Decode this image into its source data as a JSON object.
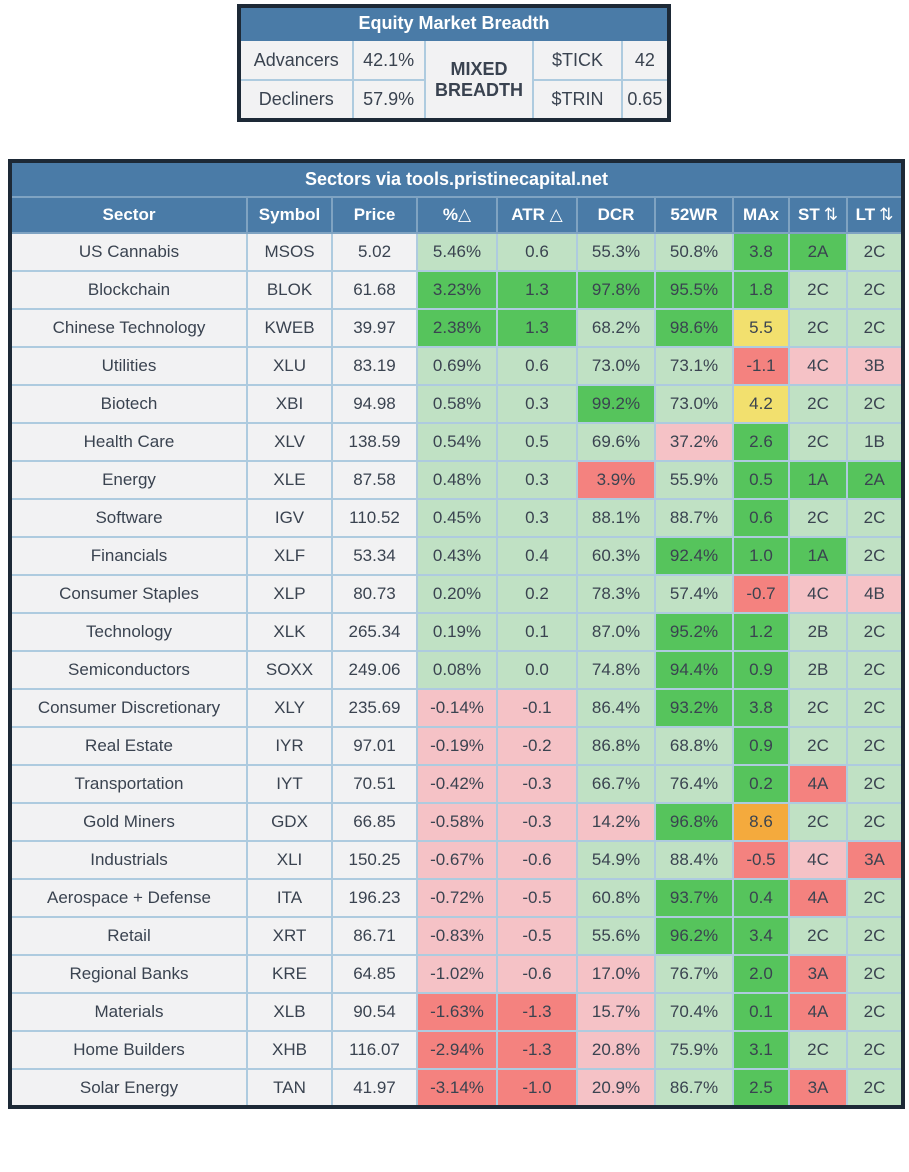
{
  "palette": {
    "dark-border": "#1d2936",
    "header-blue": "#4a7ba7",
    "grid-blue": "#aecbdf",
    "header-grid": "#7fa3c2",
    "cell-bg": "#f2f2f3",
    "text-dark": "#3a4350",
    "text-white": "#ffffff",
    "green": "#56c45c",
    "green-light": "#c0e1c4",
    "pink-light": "#f5c2c6",
    "red": "#f4827f",
    "yellow-cell": "#f2e06e",
    "yellow-breadth": "#f0d950",
    "orange": "#f4aa3d"
  },
  "icons": {
    "sort": "⇅"
  },
  "breadth": {
    "title": "Equity Market Breadth",
    "advancers_label": "Advancers",
    "advancers_value": "42.1%",
    "decliners_label": "Decliners",
    "decliners_value": "57.9%",
    "status": "MIXED BREADTH",
    "tick_label": "$TICK",
    "tick_value": "42",
    "trin_label": "$TRIN",
    "trin_value": "0.65"
  },
  "sectors": {
    "title": "Sectors via tools.pristinecapital.net",
    "columns": [
      {
        "key": "sector",
        "label": "Sector",
        "sort": false
      },
      {
        "key": "symbol",
        "label": "Symbol",
        "sort": false
      },
      {
        "key": "price",
        "label": "Price",
        "sort": false
      },
      {
        "key": "pct-change",
        "label": "%△",
        "sort": false
      },
      {
        "key": "atr-change",
        "label": "ATR △",
        "sort": false
      },
      {
        "key": "dcr",
        "label": "DCR",
        "sort": false
      },
      {
        "key": "52wr",
        "label": "52WR",
        "sort": false
      },
      {
        "key": "max",
        "label": "MAx",
        "sort": false
      },
      {
        "key": "st-rating",
        "label": "ST",
        "sort": true
      },
      {
        "key": "lt-rating",
        "label": "LT",
        "sort": true
      }
    ],
    "rows": [
      [
        "US Cannabis",
        "MSOS",
        "5.02",
        [
          "5.46%",
          "lg"
        ],
        [
          "0.6",
          "lg"
        ],
        [
          "55.3%",
          "lg"
        ],
        [
          "50.8%",
          "lg"
        ],
        [
          "3.8",
          "g"
        ],
        [
          "2A",
          "g"
        ],
        [
          "2C",
          "lg"
        ]
      ],
      [
        "Blockchain",
        "BLOK",
        "61.68",
        [
          "3.23%",
          "g"
        ],
        [
          "1.3",
          "g"
        ],
        [
          "97.8%",
          "g"
        ],
        [
          "95.5%",
          "g"
        ],
        [
          "1.8",
          "g"
        ],
        [
          "2C",
          "lg"
        ],
        [
          "2C",
          "lg"
        ]
      ],
      [
        "Chinese Technology",
        "KWEB",
        "39.97",
        [
          "2.38%",
          "g"
        ],
        [
          "1.3",
          "g"
        ],
        [
          "68.2%",
          "lg"
        ],
        [
          "98.6%",
          "g"
        ],
        [
          "5.5",
          "y"
        ],
        [
          "2C",
          "lg"
        ],
        [
          "2C",
          "lg"
        ]
      ],
      [
        "Utilities",
        "XLU",
        "83.19",
        [
          "0.69%",
          "lg"
        ],
        [
          "0.6",
          "lg"
        ],
        [
          "73.0%",
          "lg"
        ],
        [
          "73.1%",
          "lg"
        ],
        [
          "-1.1",
          "r"
        ],
        [
          "4C",
          "p"
        ],
        [
          "3B",
          "p"
        ]
      ],
      [
        "Biotech",
        "XBI",
        "94.98",
        [
          "0.58%",
          "lg"
        ],
        [
          "0.3",
          "lg"
        ],
        [
          "99.2%",
          "g"
        ],
        [
          "73.0%",
          "lg"
        ],
        [
          "4.2",
          "y"
        ],
        [
          "2C",
          "lg"
        ],
        [
          "2C",
          "lg"
        ]
      ],
      [
        "Health Care",
        "XLV",
        "138.59",
        [
          "0.54%",
          "lg"
        ],
        [
          "0.5",
          "lg"
        ],
        [
          "69.6%",
          "lg"
        ],
        [
          "37.2%",
          "p"
        ],
        [
          "2.6",
          "g"
        ],
        [
          "2C",
          "lg"
        ],
        [
          "1B",
          "lg"
        ]
      ],
      [
        "Energy",
        "XLE",
        "87.58",
        [
          "0.48%",
          "lg"
        ],
        [
          "0.3",
          "lg"
        ],
        [
          "3.9%",
          "r"
        ],
        [
          "55.9%",
          "lg"
        ],
        [
          "0.5",
          "g"
        ],
        [
          "1A",
          "g"
        ],
        [
          "2A",
          "g"
        ]
      ],
      [
        "Software",
        "IGV",
        "110.52",
        [
          "0.45%",
          "lg"
        ],
        [
          "0.3",
          "lg"
        ],
        [
          "88.1%",
          "lg"
        ],
        [
          "88.7%",
          "lg"
        ],
        [
          "0.6",
          "g"
        ],
        [
          "2C",
          "lg"
        ],
        [
          "2C",
          "lg"
        ]
      ],
      [
        "Financials",
        "XLF",
        "53.34",
        [
          "0.43%",
          "lg"
        ],
        [
          "0.4",
          "lg"
        ],
        [
          "60.3%",
          "lg"
        ],
        [
          "92.4%",
          "g"
        ],
        [
          "1.0",
          "g"
        ],
        [
          "1A",
          "g"
        ],
        [
          "2C",
          "lg"
        ]
      ],
      [
        "Consumer Staples",
        "XLP",
        "80.73",
        [
          "0.20%",
          "lg"
        ],
        [
          "0.2",
          "lg"
        ],
        [
          "78.3%",
          "lg"
        ],
        [
          "57.4%",
          "lg"
        ],
        [
          "-0.7",
          "r"
        ],
        [
          "4C",
          "p"
        ],
        [
          "4B",
          "p"
        ]
      ],
      [
        "Technology",
        "XLK",
        "265.34",
        [
          "0.19%",
          "lg"
        ],
        [
          "0.1",
          "lg"
        ],
        [
          "87.0%",
          "lg"
        ],
        [
          "95.2%",
          "g"
        ],
        [
          "1.2",
          "g"
        ],
        [
          "2B",
          "lg"
        ],
        [
          "2C",
          "lg"
        ]
      ],
      [
        "Semiconductors",
        "SOXX",
        "249.06",
        [
          "0.08%",
          "lg"
        ],
        [
          "0.0",
          "lg"
        ],
        [
          "74.8%",
          "lg"
        ],
        [
          "94.4%",
          "g"
        ],
        [
          "0.9",
          "g"
        ],
        [
          "2B",
          "lg"
        ],
        [
          "2C",
          "lg"
        ]
      ],
      [
        "Consumer Discretionary",
        "XLY",
        "235.69",
        [
          "-0.14%",
          "p"
        ],
        [
          "-0.1",
          "p"
        ],
        [
          "86.4%",
          "lg"
        ],
        [
          "93.2%",
          "g"
        ],
        [
          "3.8",
          "g"
        ],
        [
          "2C",
          "lg"
        ],
        [
          "2C",
          "lg"
        ]
      ],
      [
        "Real Estate",
        "IYR",
        "97.01",
        [
          "-0.19%",
          "p"
        ],
        [
          "-0.2",
          "p"
        ],
        [
          "86.8%",
          "lg"
        ],
        [
          "68.8%",
          "lg"
        ],
        [
          "0.9",
          "g"
        ],
        [
          "2C",
          "lg"
        ],
        [
          "2C",
          "lg"
        ]
      ],
      [
        "Transportation",
        "IYT",
        "70.51",
        [
          "-0.42%",
          "p"
        ],
        [
          "-0.3",
          "p"
        ],
        [
          "66.7%",
          "lg"
        ],
        [
          "76.4%",
          "lg"
        ],
        [
          "0.2",
          "g"
        ],
        [
          "4A",
          "r"
        ],
        [
          "2C",
          "lg"
        ]
      ],
      [
        "Gold Miners",
        "GDX",
        "66.85",
        [
          "-0.58%",
          "p"
        ],
        [
          "-0.3",
          "p"
        ],
        [
          "14.2%",
          "p"
        ],
        [
          "96.8%",
          "g"
        ],
        [
          "8.6",
          "o"
        ],
        [
          "2C",
          "lg"
        ],
        [
          "2C",
          "lg"
        ]
      ],
      [
        "Industrials",
        "XLI",
        "150.25",
        [
          "-0.67%",
          "p"
        ],
        [
          "-0.6",
          "p"
        ],
        [
          "54.9%",
          "lg"
        ],
        [
          "88.4%",
          "lg"
        ],
        [
          "-0.5",
          "r"
        ],
        [
          "4C",
          "p"
        ],
        [
          "3A",
          "r"
        ]
      ],
      [
        "Aerospace + Defense",
        "ITA",
        "196.23",
        [
          "-0.72%",
          "p"
        ],
        [
          "-0.5",
          "p"
        ],
        [
          "60.8%",
          "lg"
        ],
        [
          "93.7%",
          "g"
        ],
        [
          "0.4",
          "g"
        ],
        [
          "4A",
          "r"
        ],
        [
          "2C",
          "lg"
        ]
      ],
      [
        "Retail",
        "XRT",
        "86.71",
        [
          "-0.83%",
          "p"
        ],
        [
          "-0.5",
          "p"
        ],
        [
          "55.6%",
          "lg"
        ],
        [
          "96.2%",
          "g"
        ],
        [
          "3.4",
          "g"
        ],
        [
          "2C",
          "lg"
        ],
        [
          "2C",
          "lg"
        ]
      ],
      [
        "Regional Banks",
        "KRE",
        "64.85",
        [
          "-1.02%",
          "p"
        ],
        [
          "-0.6",
          "p"
        ],
        [
          "17.0%",
          "p"
        ],
        [
          "76.7%",
          "lg"
        ],
        [
          "2.0",
          "g"
        ],
        [
          "3A",
          "r"
        ],
        [
          "2C",
          "lg"
        ]
      ],
      [
        "Materials",
        "XLB",
        "90.54",
        [
          "-1.63%",
          "r"
        ],
        [
          "-1.3",
          "r"
        ],
        [
          "15.7%",
          "p"
        ],
        [
          "70.4%",
          "lg"
        ],
        [
          "0.1",
          "g"
        ],
        [
          "4A",
          "r"
        ],
        [
          "2C",
          "lg"
        ]
      ],
      [
        "Home Builders",
        "XHB",
        "116.07",
        [
          "-2.94%",
          "r"
        ],
        [
          "-1.3",
          "r"
        ],
        [
          "20.8%",
          "p"
        ],
        [
          "75.9%",
          "lg"
        ],
        [
          "3.1",
          "g"
        ],
        [
          "2C",
          "lg"
        ],
        [
          "2C",
          "lg"
        ]
      ],
      [
        "Solar Energy",
        "TAN",
        "41.97",
        [
          "-3.14%",
          "r"
        ],
        [
          "-1.0",
          "r"
        ],
        [
          "20.9%",
          "p"
        ],
        [
          "86.7%",
          "lg"
        ],
        [
          "2.5",
          "g"
        ],
        [
          "3A",
          "r"
        ],
        [
          "2C",
          "lg"
        ]
      ]
    ]
  }
}
